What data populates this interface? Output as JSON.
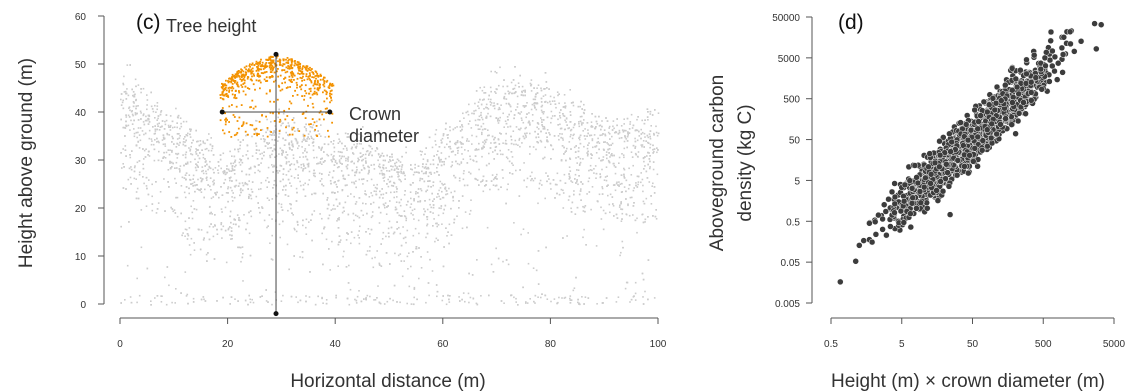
{
  "colors": {
    "lidar": "#cccccc",
    "crown": "#f39200",
    "scatter_fill": "#3c3c3c",
    "scatter_edge": "#ffffff",
    "axis": "#555555",
    "measure_line": "#444444"
  },
  "chart_data": [
    {
      "type": "scatter",
      "panel_label": "(c)",
      "xlabel": "Horizontal distance (m)",
      "ylabel": "Height above ground (m)",
      "xlim": [
        0,
        100
      ],
      "ylim": [
        0,
        60
      ],
      "x_ticks": [
        0,
        20,
        40,
        60,
        80,
        100
      ],
      "y_ticks": [
        0,
        10,
        20,
        30,
        40,
        50,
        60
      ],
      "annotations": {
        "tree_height_label": "Tree height",
        "crown_label_1": "Crown",
        "crown_label_2": "diameter"
      },
      "tree_height_line": {
        "x": 29,
        "y_from": -2,
        "y_to": 52
      },
      "crown_diameter_line": {
        "y": 40,
        "x_from": 19,
        "x_to": 39
      },
      "canopy_profile": {
        "x": [
          0,
          5,
          10,
          15,
          20,
          25,
          30,
          35,
          40,
          45,
          50,
          55,
          60,
          65,
          70,
          75,
          80,
          85,
          90,
          95,
          100
        ],
        "top_height": [
          48,
          42,
          38,
          34,
          31,
          36,
          38,
          36,
          33,
          35,
          31,
          29,
          35,
          40,
          46,
          46,
          44,
          40,
          38,
          37,
          40
        ]
      },
      "highlighted_crown": {
        "x_center": 29,
        "top": 52,
        "half_width": 10.5,
        "base": 35
      }
    },
    {
      "type": "scatter",
      "panel_label": "(d)",
      "xlabel": "Height (m) × crown diameter (m)",
      "ylabel_line1": "Aboveground carbon",
      "ylabel_line2": "density (kg C)",
      "x_scale": "log",
      "y_scale": "log",
      "xlim": [
        0.5,
        5000
      ],
      "ylim": [
        0.005,
        50000
      ],
      "x_ticks": [
        "0.5",
        "5",
        "50",
        "500",
        "5000"
      ],
      "y_ticks": [
        "0.005",
        "0.05",
        "0.5",
        "5",
        "50",
        "500",
        "5000",
        "50000"
      ],
      "trend": {
        "x_from": 0.5,
        "x_to": 3000,
        "y_from": 0.03,
        "y_to": 40000
      },
      "points_approx": 1500
    }
  ]
}
